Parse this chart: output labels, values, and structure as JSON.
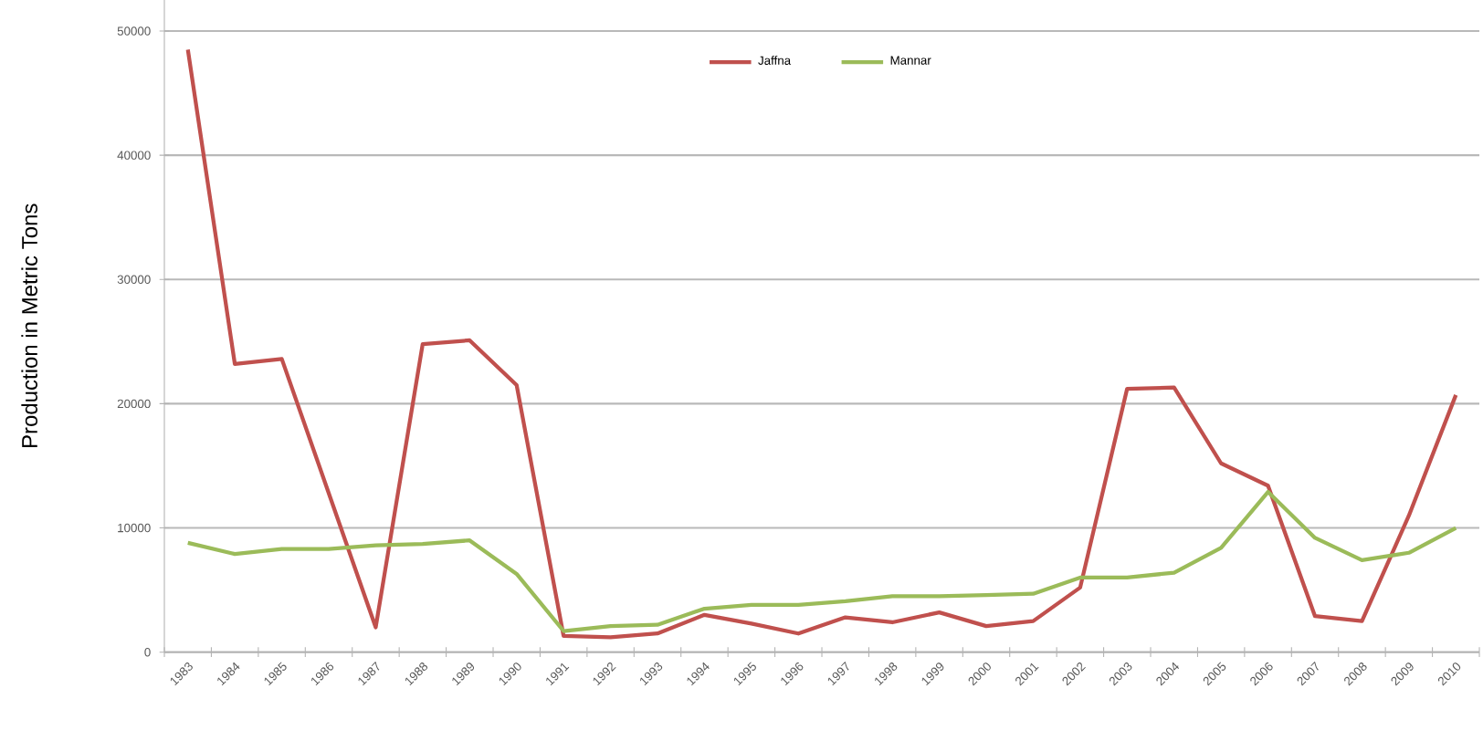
{
  "chart_data": {
    "type": "line",
    "ylabel": "Production in Metric Tons",
    "categories": [
      "1983",
      "1984",
      "1985",
      "1986",
      "1987",
      "1988",
      "1989",
      "1990",
      "1991",
      "1992",
      "1993",
      "1994",
      "1995",
      "1996",
      "1997",
      "1998",
      "1999",
      "2000",
      "2001",
      "2002",
      "2003",
      "2004",
      "2005",
      "2006",
      "2007",
      "2008",
      "2009",
      "2010"
    ],
    "series": [
      {
        "name": "Jaffna",
        "color": "#c0504d",
        "values": [
          48500,
          23200,
          23600,
          12800,
          2000,
          24800,
          25100,
          21500,
          1300,
          1200,
          1500,
          3000,
          2300,
          1500,
          2800,
          2400,
          3200,
          2100,
          2500,
          5200,
          21200,
          21300,
          15200,
          13400,
          2900,
          2500,
          11000,
          20700
        ]
      },
      {
        "name": "Mannar",
        "color": "#9bbb59",
        "values": [
          8800,
          7900,
          8300,
          8300,
          8600,
          8700,
          9000,
          6300,
          1700,
          2100,
          2200,
          3500,
          3800,
          3800,
          4100,
          4500,
          4500,
          4600,
          4700,
          6000,
          6000,
          6400,
          8400,
          12900,
          9200,
          7400,
          8000,
          10000
        ]
      }
    ],
    "ylim": [
      0,
      52500
    ],
    "yticks": [
      0,
      10000,
      20000,
      30000,
      40000,
      50000
    ],
    "grid": "y",
    "legend": "top",
    "marker": "none",
    "line_style": "solid"
  }
}
